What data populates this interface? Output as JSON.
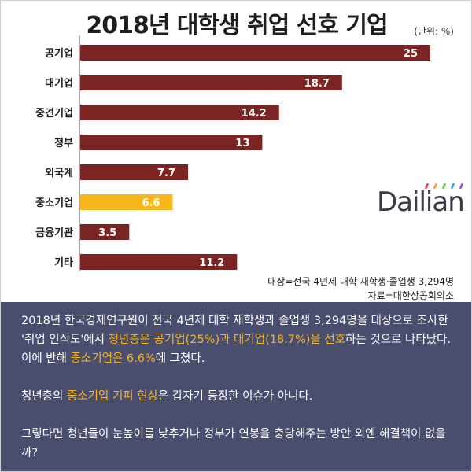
{
  "header": {
    "title": "2018년 대학생 취업 선호 기업",
    "unit": "(단위: %)"
  },
  "chart_data": {
    "type": "bar",
    "orientation": "horizontal",
    "categories": [
      "공기업",
      "대기업",
      "중견기업",
      "정부",
      "외국계",
      "중소기업",
      "금융기관",
      "기타"
    ],
    "values": [
      25,
      18.7,
      14.2,
      13,
      7.7,
      6.6,
      3.5,
      11.2
    ],
    "value_labels": [
      "25",
      "18.7",
      "14.2",
      "13",
      "7.7",
      "6.6",
      "3.5",
      "11.2"
    ],
    "bar_color": "#7b2424",
    "highlight_index": 5,
    "highlight_color": "#f7b71a",
    "xlim": [
      0,
      25
    ]
  },
  "logo": {
    "text": "Dailian",
    "dot_colors": [
      "#e5455a",
      "#f4a72a",
      "#7ac043",
      "#3ea4dd",
      "#9b59b6"
    ]
  },
  "footnotes": {
    "target": "대상=전국 4년제 대학 재학생·졸업생 3,294명",
    "source": "자료=대한상공회의소"
  },
  "body": {
    "p1": {
      "a": "2018년 한국경제연구원이 전국 4년제 대학 재학생과 졸업생 3,294명을 대상으로 조사한 '취업 인식도'에서 ",
      "b": "청년층은 공기업(25%)과 대기업(18.7%)을 선호",
      "c": "하는 것으로 나타났다. 이에 반해 ",
      "d": "중소기업은 6.6%",
      "e": "에 그쳤다."
    },
    "p2": {
      "a": "청년층의 ",
      "b": "중소기업 기피 현상",
      "c": "은 갑자기 등장한 이슈가 아니다."
    },
    "p3": "그렇다면 청년들이 눈높이를 낮추거나 정부가 연봉을 충당해주는 방안 외엔 해결책이 없을까?"
  },
  "colors": {
    "panel_bg": "#4a4e6e",
    "highlight_text": "#f5b41e"
  }
}
